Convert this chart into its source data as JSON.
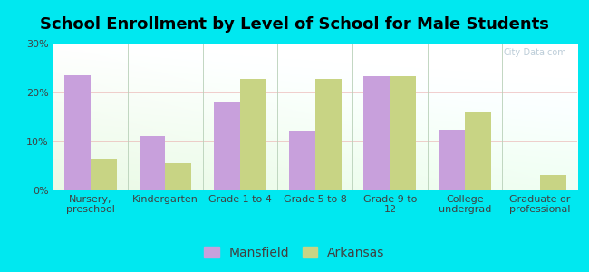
{
  "title": "School Enrollment by Level of School for Male Students",
  "categories": [
    "Nursery,\npreschool",
    "Kindergarten",
    "Grade 1 to 4",
    "Grade 5 to 8",
    "Grade 9 to\n12",
    "College\nundergrad",
    "Graduate or\nprofessional"
  ],
  "mansfield": [
    23.5,
    11.2,
    18.0,
    12.2,
    23.3,
    12.5,
    0
  ],
  "arkansas": [
    6.5,
    5.5,
    22.8,
    22.8,
    23.3,
    16.2,
    3.2
  ],
  "mansfield_color": "#c8a0dc",
  "arkansas_color": "#c8d484",
  "background_color": "#00e8f0",
  "ylim": [
    0,
    30
  ],
  "yticks": [
    0,
    10,
    20,
    30
  ],
  "ytick_labels": [
    "0%",
    "10%",
    "20%",
    "30%"
  ],
  "bar_width": 0.35,
  "title_fontsize": 13,
  "tick_fontsize": 8,
  "legend_fontsize": 10,
  "watermark": "City-Data.com"
}
